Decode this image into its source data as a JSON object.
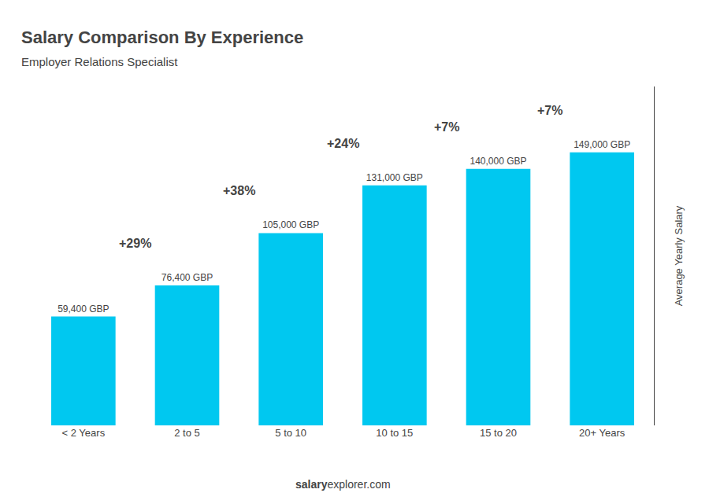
{
  "chart_data": {
    "type": "bar",
    "title": "Salary Comparison By Experience",
    "subtitle": "Employer Relations Specialist",
    "categories": [
      "< 2 Years",
      "2 to 5",
      "5 to 10",
      "10 to 15",
      "15 to 20",
      "20+ Years"
    ],
    "values": [
      59400,
      76400,
      105000,
      131000,
      140000,
      149000
    ],
    "value_labels": [
      "59,400 GBP",
      "76,400 GBP",
      "105,000 GBP",
      "131,000 GBP",
      "140,000 GBP",
      "149,000 GBP"
    ],
    "data_labels": true,
    "annotations": [
      "+29%",
      "+38%",
      "+24%",
      "+7%",
      "+7%"
    ],
    "ylabel": "Average Yearly Salary",
    "footer": [
      "salary",
      "explorer.com"
    ],
    "color": "#00C8F0",
    "ylim": [
      0,
      185000
    ],
    "yticks": [],
    "tick_labels": "x",
    "grid": false
  }
}
